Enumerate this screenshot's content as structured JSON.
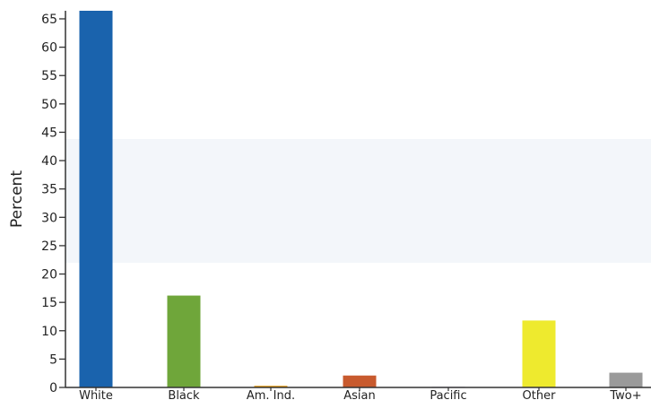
{
  "chart_data": {
    "type": "bar",
    "title": "",
    "xlabel": "",
    "ylabel": "Percent",
    "ylim": [
      0,
      65
    ],
    "yticks": [
      0,
      5,
      10,
      15,
      20,
      25,
      30,
      35,
      40,
      45,
      50,
      55,
      60,
      65
    ],
    "categories": [
      "White",
      "Black",
      "Am. Ind.",
      "Asian",
      "Pacific",
      "Other",
      "Two+"
    ],
    "values": [
      66.5,
      16.2,
      0.3,
      2.1,
      0.1,
      11.8,
      2.6
    ],
    "colors": [
      "#1a63ad",
      "#6fa63a",
      "#e6a020",
      "#c85a2e",
      "#8a7bb8",
      "#eeea2e",
      "#9a9a9a"
    ],
    "grid": false,
    "legend": "none"
  }
}
